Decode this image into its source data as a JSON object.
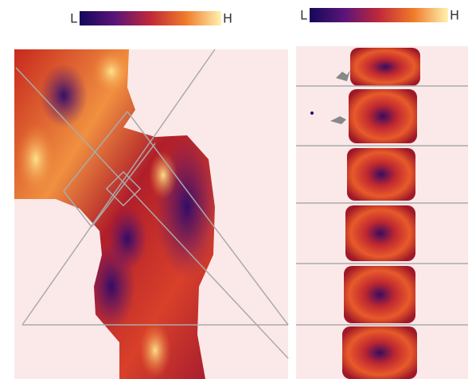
{
  "colorbars": [
    {
      "low": "L",
      "high": "H"
    },
    {
      "low": "L",
      "high": "H"
    }
  ]
}
